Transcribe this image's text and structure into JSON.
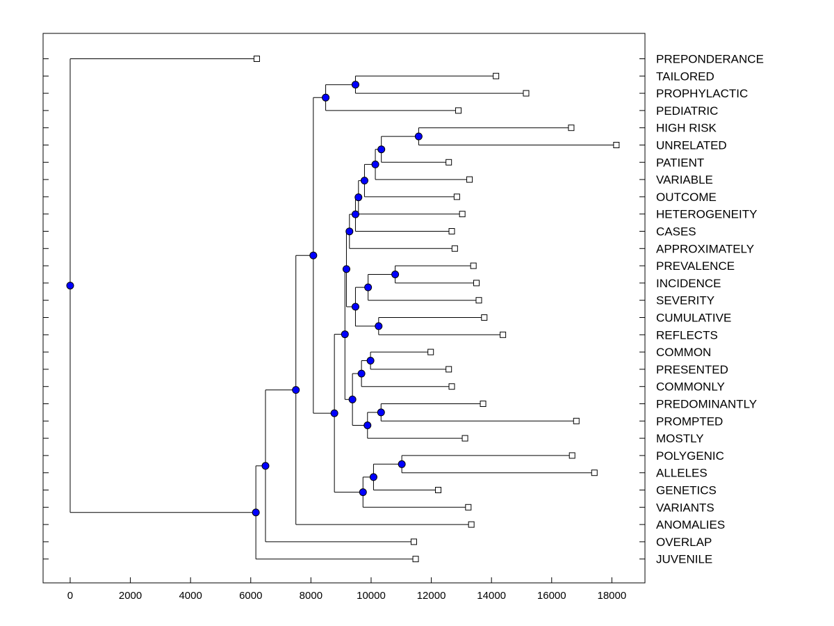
{
  "chart_data": {
    "type": "dendrogram",
    "x_axis": {
      "ticks": [
        0,
        2000,
        4000,
        6000,
        8000,
        10000,
        12000,
        14000,
        16000,
        18000
      ],
      "xlim": [
        -900,
        19100
      ]
    },
    "leaves": [
      {
        "label": "PREPONDERANCE",
        "x": 6200
      },
      {
        "label": "TAILORED",
        "x": 14150
      },
      {
        "label": "PROPHYLACTIC",
        "x": 15150
      },
      {
        "label": "PEDIATRIC",
        "x": 12900
      },
      {
        "label": "HIGH RISK",
        "x": 16650
      },
      {
        "label": "UNRELATED",
        "x": 18150
      },
      {
        "label": "PATIENT",
        "x": 12580
      },
      {
        "label": "VARIABLE",
        "x": 13270
      },
      {
        "label": "OUTCOME",
        "x": 12850
      },
      {
        "label": "HETEROGENEITY",
        "x": 13030
      },
      {
        "label": "CASES",
        "x": 12680
      },
      {
        "label": "APPROXIMATELY",
        "x": 12780
      },
      {
        "label": "PREVALENCE",
        "x": 13400
      },
      {
        "label": "INCIDENCE",
        "x": 13500
      },
      {
        "label": "SEVERITY",
        "x": 13580
      },
      {
        "label": "CUMULATIVE",
        "x": 13760
      },
      {
        "label": "REFLECTS",
        "x": 14380
      },
      {
        "label": "COMMON",
        "x": 11980
      },
      {
        "label": "PRESENTED",
        "x": 12580
      },
      {
        "label": "COMMONLY",
        "x": 12680
      },
      {
        "label": "PREDOMINANTLY",
        "x": 13720
      },
      {
        "label": "PROMPTED",
        "x": 16820
      },
      {
        "label": "MOSTLY",
        "x": 13120
      },
      {
        "label": "POLYGENIC",
        "x": 16680
      },
      {
        "label": "ALLELES",
        "x": 17420
      },
      {
        "label": "GENETICS",
        "x": 12230
      },
      {
        "label": "VARIANTS",
        "x": 13230
      },
      {
        "label": "ANOMALIES",
        "x": 13330
      },
      {
        "label": "OVERLAP",
        "x": 11420
      },
      {
        "label": "JUVENILE",
        "x": 11480
      }
    ],
    "merges": [
      {
        "id": "n1",
        "x": 9480,
        "children": [
          "L1",
          "L2"
        ]
      },
      {
        "id": "n2",
        "x": 8490,
        "children": [
          "n1",
          "L3"
        ]
      },
      {
        "id": "n3",
        "x": 11580,
        "children": [
          "L4",
          "L5"
        ]
      },
      {
        "id": "n4",
        "x": 10340,
        "children": [
          "n3",
          "L6"
        ]
      },
      {
        "id": "n5",
        "x": 10140,
        "children": [
          "n4",
          "L7"
        ]
      },
      {
        "id": "n6",
        "x": 9780,
        "children": [
          "n5",
          "L8"
        ]
      },
      {
        "id": "n7",
        "x": 9580,
        "children": [
          "n6",
          "L9"
        ]
      },
      {
        "id": "n8",
        "x": 9480,
        "children": [
          "n7",
          "L10"
        ]
      },
      {
        "id": "n9",
        "x": 9280,
        "children": [
          "n8",
          "L11"
        ]
      },
      {
        "id": "n10",
        "x": 10800,
        "children": [
          "L12",
          "L13"
        ]
      },
      {
        "id": "n11",
        "x": 9900,
        "children": [
          "n10",
          "L14"
        ]
      },
      {
        "id": "n12",
        "x": 10250,
        "children": [
          "L15",
          "L16"
        ]
      },
      {
        "id": "n13",
        "x": 9480,
        "children": [
          "n11",
          "n12"
        ]
      },
      {
        "id": "n14",
        "x": 9180,
        "children": [
          "n9",
          "n13"
        ]
      },
      {
        "id": "n15",
        "x": 9980,
        "children": [
          "L17",
          "L18"
        ]
      },
      {
        "id": "n16",
        "x": 9680,
        "children": [
          "n15",
          "L19"
        ]
      },
      {
        "id": "n17",
        "x": 10330,
        "children": [
          "L20",
          "L21"
        ]
      },
      {
        "id": "n18",
        "x": 9880,
        "children": [
          "n17",
          "L22"
        ]
      },
      {
        "id": "n19",
        "x": 9380,
        "children": [
          "n16",
          "n18"
        ]
      },
      {
        "id": "n20",
        "x": 9130,
        "children": [
          "n14",
          "n19"
        ]
      },
      {
        "id": "n21",
        "x": 11020,
        "children": [
          "L23",
          "L24"
        ]
      },
      {
        "id": "n22",
        "x": 10080,
        "children": [
          "n21",
          "L25"
        ]
      },
      {
        "id": "n23",
        "x": 9730,
        "children": [
          "n22",
          "L26"
        ]
      },
      {
        "id": "n24",
        "x": 8780,
        "children": [
          "n20",
          "n23"
        ]
      },
      {
        "id": "n25",
        "x": 8080,
        "children": [
          "n2",
          "n24"
        ]
      },
      {
        "id": "n26",
        "x": 7500,
        "children": [
          "n25",
          "L27"
        ]
      },
      {
        "id": "n27",
        "x": 6490,
        "children": [
          "n26",
          "L28"
        ]
      },
      {
        "id": "n28",
        "x": 6170,
        "children": [
          "n27",
          "L29"
        ]
      },
      {
        "id": "n29",
        "x": 0,
        "children": [
          "L0",
          "n28"
        ]
      }
    ],
    "colors": {
      "node_fill": "#0000ff",
      "line": "#000000",
      "leaf_fill": "#ffffff"
    }
  }
}
